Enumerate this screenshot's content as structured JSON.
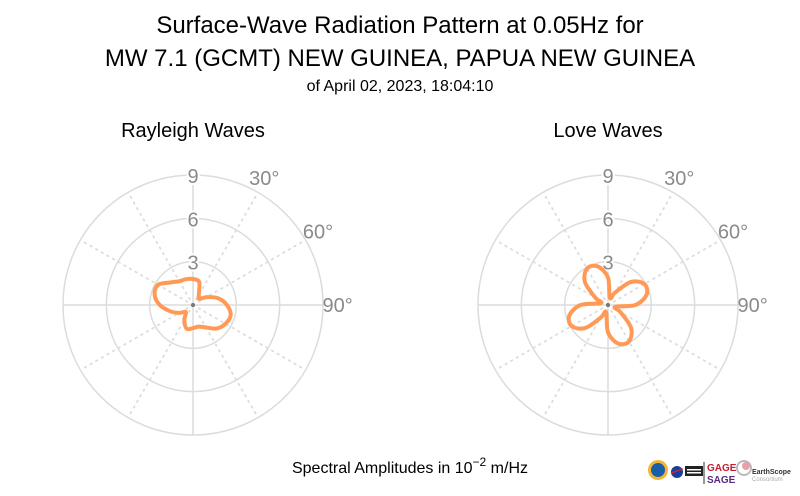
{
  "chart_data": [
    {
      "type": "polar-line",
      "title": "Rayleigh Waves",
      "direction": "clockwise",
      "zero_location": "north",
      "radial_ticks": [
        "3",
        "6",
        "9"
      ],
      "rlim": [
        0,
        9
      ],
      "angle_ticks": [
        "30°",
        "60°",
        "90°"
      ],
      "grid": true,
      "color": "#ff9955",
      "theta_deg": [
        0,
        15,
        30,
        45,
        60,
        75,
        90,
        105,
        120,
        135,
        150,
        165,
        180,
        195,
        210,
        225,
        240,
        255,
        270,
        285,
        300,
        315,
        330,
        345
      ],
      "r": [
        1.8,
        1.65,
        0.8,
        0.6,
        1.1,
        1.8,
        2.35,
        2.7,
        2.6,
        2.3,
        1.8,
        1.55,
        1.6,
        1.7,
        1.2,
        0.7,
        1.1,
        1.65,
        2.3,
        2.75,
        2.8,
        2.2,
        1.9,
        1.85
      ]
    },
    {
      "type": "polar-line",
      "title": "Love Waves",
      "direction": "clockwise",
      "zero_location": "north",
      "radial_ticks": [
        "3",
        "6",
        "9"
      ],
      "rlim": [
        0,
        9
      ],
      "angle_ticks": [
        "30°",
        "60°",
        "90°"
      ],
      "grid": true,
      "color": "#ff9955",
      "theta_deg": [
        0,
        15,
        30,
        45,
        60,
        75,
        90,
        105,
        120,
        135,
        150,
        165,
        180,
        195,
        210,
        225,
        240,
        255,
        270,
        285,
        300,
        315,
        330,
        345
      ],
      "r": [
        1.9,
        0.51,
        1.01,
        2.26,
        2.91,
        2.77,
        1.9,
        0.51,
        1.01,
        2.26,
        2.91,
        2.77,
        1.9,
        0.51,
        1.01,
        2.26,
        2.91,
        2.77,
        1.9,
        0.51,
        1.01,
        2.26,
        2.91,
        2.77
      ]
    }
  ],
  "header": {
    "title_line1": "Surface-Wave Radiation Pattern at 0.05Hz for",
    "title_line2": "MW 7.1 (GCMT) NEW GUINEA, PAPUA NEW GUINEA",
    "subtitle": "of April 02, 2023, 18:04:10"
  },
  "footer": {
    "label_prefix": "Spectral Amplitudes in 10",
    "label_exponent": "−2",
    "label_suffix": " m/Hz"
  },
  "logos": {
    "gage": "GAGE",
    "sage": "SAGE",
    "earthscope": "EarthScope",
    "consortium": "Consortium",
    "usgs": "USGS",
    "nsf": "NSF",
    "nasa": "NASA"
  }
}
